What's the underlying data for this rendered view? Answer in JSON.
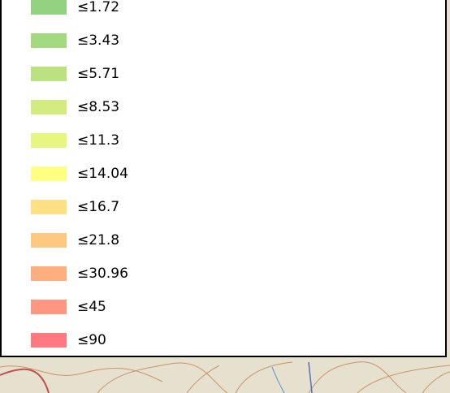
{
  "legend": {
    "items": [
      {
        "label": "≤1.72",
        "color": "#92d281"
      },
      {
        "label": "≤3.43",
        "color": "#a3d97f"
      },
      {
        "label": "≤5.71",
        "color": "#bbe280"
      },
      {
        "label": "≤8.53",
        "color": "#d2ec80"
      },
      {
        "label": "≤11.3",
        "color": "#e6f680"
      },
      {
        "label": "≤14.04",
        "color": "#ffff80"
      },
      {
        "label": "≤16.7",
        "color": "#ffe082"
      },
      {
        "label": "≤21.8",
        "color": "#ffc880"
      },
      {
        "label": "≤30.96",
        "color": "#ffae80"
      },
      {
        "label": "≤45",
        "color": "#ff9680"
      },
      {
        "label": "≤90",
        "color": "#ff7a80"
      }
    ]
  }
}
